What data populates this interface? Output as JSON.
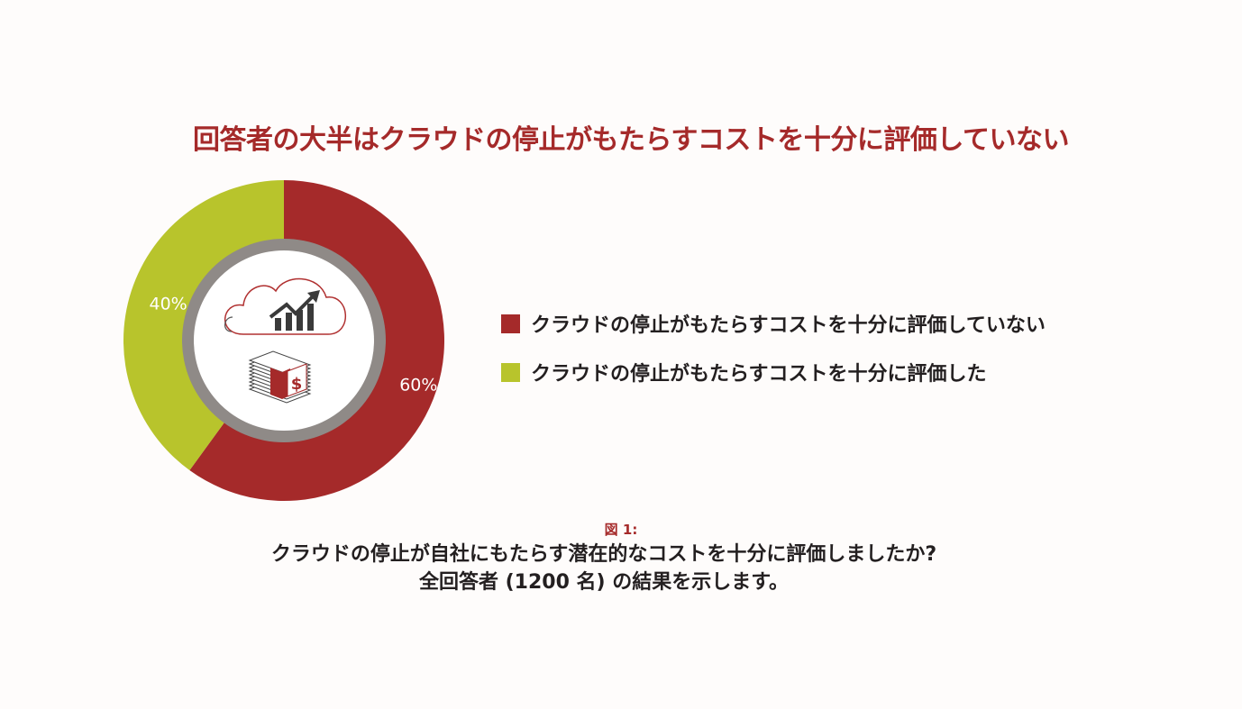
{
  "chart_data": {
    "type": "pie",
    "title": "回答者の大半はクラウドの停止がもたらすコストを十分に評価していない",
    "series": [
      {
        "name": "クラウドの停止がもたらすコストを十分に評価していない",
        "value": 60,
        "label": "60%",
        "color": "#a52a2a"
      },
      {
        "name": "クラウドの停止がもたらすコストを十分に評価した",
        "value": 40,
        "label": "40%",
        "color": "#b8c42c"
      }
    ],
    "legend_placement": "right"
  },
  "figure": {
    "label": "図 1:",
    "caption_line1": "クラウドの停止が自社にもたらす潜在的なコストを十分に評価しましたか?",
    "caption_line2": "全回答者 (1200 名) の結果を示します。"
  },
  "icons": [
    "cloud-growth-chart-icon",
    "money-stack-icon"
  ]
}
